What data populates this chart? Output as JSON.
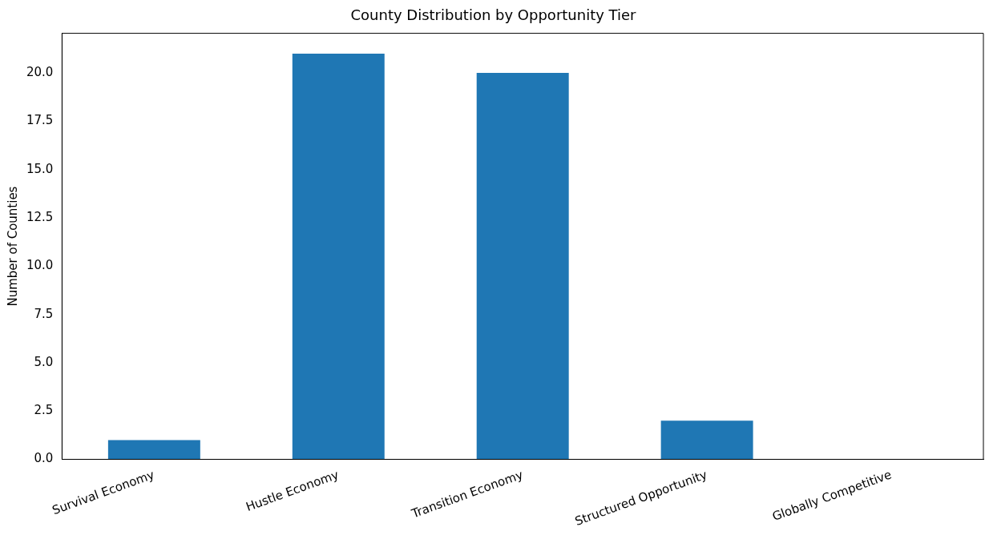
{
  "chart_data": {
    "type": "bar",
    "title": "County Distribution by Opportunity Tier",
    "ylabel": "Number of Counties",
    "categories": [
      "Survival Economy",
      "Hustle Economy",
      "Transition Economy",
      "Structured Opportunity",
      "Globally Competitive"
    ],
    "values": [
      1,
      21,
      20,
      2,
      0
    ],
    "color": "#1f77b4",
    "ylim": [
      0,
      22.05
    ],
    "yticks": [
      {
        "value": 0,
        "label": "0.0"
      },
      {
        "value": 2.5,
        "label": "2.5"
      },
      {
        "value": 5,
        "label": "5.0"
      },
      {
        "value": 7.5,
        "label": "7.5"
      },
      {
        "value": 10,
        "label": "10.0"
      },
      {
        "value": 12.5,
        "label": "12.5"
      },
      {
        "value": 15,
        "label": "15.0"
      },
      {
        "value": 17.5,
        "label": "17.5"
      },
      {
        "value": 20,
        "label": "20.0"
      }
    ],
    "grid": false,
    "legend": false
  }
}
